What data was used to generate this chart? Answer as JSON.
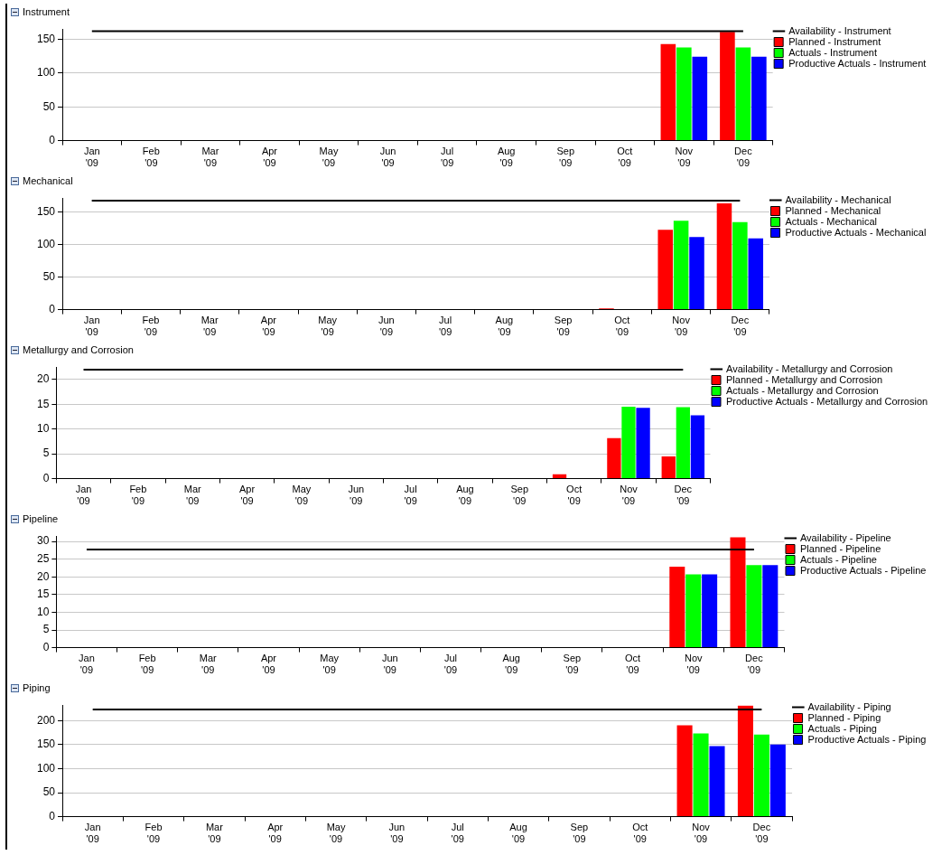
{
  "chart_data": [
    {
      "type": "bar",
      "title": "Instrument",
      "categories": [
        "Jan '09",
        "Feb '09",
        "Mar '09",
        "Apr '09",
        "May '09",
        "Jun '09",
        "Jul '09",
        "Aug '09",
        "Sep '09",
        "Oct '09",
        "Nov '09",
        "Dec '09"
      ],
      "ylim": [
        0,
        165
      ],
      "yticks": [
        0,
        50,
        100,
        150
      ],
      "grid": "y",
      "legend": "right",
      "marker": "none",
      "series": [
        {
          "name": "Availability - Instrument",
          "type": "line",
          "color": "#000000",
          "values": [
            162,
            162,
            162,
            162,
            162,
            162,
            162,
            162,
            162,
            162,
            162,
            162
          ]
        },
        {
          "name": "Planned - Instrument",
          "color": "#ff0000",
          "values": [
            0,
            0,
            0,
            0,
            0,
            0,
            0,
            0,
            0,
            0,
            143,
            161
          ]
        },
        {
          "name": "Actuals - Instrument",
          "color": "#00ff00",
          "values": [
            0,
            0,
            0,
            0,
            0,
            0,
            0,
            0,
            0,
            0,
            138,
            138
          ]
        },
        {
          "name": "Productive Actuals - Instrument",
          "color": "#0000ff",
          "values": [
            0,
            0,
            0,
            0,
            0,
            0,
            0,
            0,
            0,
            0,
            124,
            124
          ]
        }
      ]
    },
    {
      "type": "bar",
      "title": "Mechanical",
      "categories": [
        "Jan '09",
        "Feb '09",
        "Mar '09",
        "Apr '09",
        "May '09",
        "Jun '09",
        "Jul '09",
        "Aug '09",
        "Sep '09",
        "Oct '09",
        "Nov '09",
        "Dec '09"
      ],
      "ylim": [
        0,
        172
      ],
      "yticks": [
        0,
        50,
        100,
        150
      ],
      "grid": "y",
      "legend": "right",
      "marker": "none",
      "series": [
        {
          "name": "Availability - Mechanical",
          "type": "line",
          "color": "#000000",
          "values": [
            168,
            168,
            168,
            168,
            168,
            168,
            168,
            168,
            168,
            168,
            168,
            168
          ]
        },
        {
          "name": "Planned - Mechanical",
          "color": "#ff0000",
          "values": [
            0,
            0,
            0,
            0,
            0,
            0,
            0,
            0,
            0,
            2,
            123,
            164
          ]
        },
        {
          "name": "Actuals - Mechanical",
          "color": "#00ff00",
          "values": [
            0,
            0,
            0,
            0,
            0,
            0,
            0,
            0,
            0,
            0,
            137,
            135
          ]
        },
        {
          "name": "Productive Actuals - Mechanical",
          "color": "#0000ff",
          "values": [
            0,
            0,
            0,
            0,
            0,
            0,
            0,
            0,
            0,
            0,
            112,
            110
          ]
        }
      ]
    },
    {
      "type": "bar",
      "title": "Metallurgy and Corrosion",
      "categories": [
        "Jan '09",
        "Feb '09",
        "Mar '09",
        "Apr '09",
        "May '09",
        "Jun '09",
        "Jul '09",
        "Aug '09",
        "Sep '09",
        "Oct '09",
        "Nov '09",
        "Dec '09"
      ],
      "ylim": [
        0,
        22.5
      ],
      "yticks": [
        0,
        5,
        10,
        15,
        20
      ],
      "grid": "y",
      "legend": "right",
      "marker": "none",
      "series": [
        {
          "name": "Availability - Metallurgy and Corrosion",
          "type": "line",
          "color": "#000000",
          "values": [
            22,
            22,
            22,
            22,
            22,
            22,
            22,
            22,
            22,
            22,
            22,
            22
          ]
        },
        {
          "name": "Planned - Metallurgy and Corrosion",
          "color": "#ff0000",
          "values": [
            0,
            0,
            0,
            0,
            0,
            0,
            0,
            0,
            0,
            0.9,
            8.2,
            4.5
          ]
        },
        {
          "name": "Actuals - Metallurgy and Corrosion",
          "color": "#00ff00",
          "values": [
            0,
            0,
            0,
            0,
            0,
            0,
            0,
            0,
            0,
            0,
            14.5,
            14.4
          ]
        },
        {
          "name": "Productive Actuals - Metallurgy and Corrosion",
          "color": "#0000ff",
          "values": [
            0,
            0,
            0,
            0,
            0,
            0,
            0,
            0,
            0,
            0,
            14.3,
            12.8
          ]
        }
      ]
    },
    {
      "type": "bar",
      "title": "Pipeline",
      "categories": [
        "Jan '09",
        "Feb '09",
        "Mar '09",
        "Apr '09",
        "May '09",
        "Jun '09",
        "Jul '09",
        "Aug '09",
        "Sep '09",
        "Oct '09",
        "Nov '09",
        "Dec '09"
      ],
      "ylim": [
        0,
        31.5
      ],
      "yticks": [
        0,
        5,
        10,
        15,
        20,
        25,
        30
      ],
      "grid": "y",
      "legend": "right",
      "marker": "none",
      "series": [
        {
          "name": "Availability - Pipeline",
          "type": "line",
          "color": "#000000",
          "values": [
            27.7,
            27.7,
            27.7,
            27.7,
            27.7,
            27.7,
            27.7,
            27.7,
            27.7,
            27.7,
            27.7,
            27.7
          ]
        },
        {
          "name": "Planned - Pipeline",
          "color": "#ff0000",
          "values": [
            0,
            0,
            0,
            0,
            0,
            0,
            0,
            0,
            0,
            0,
            22.9,
            31.2
          ]
        },
        {
          "name": "Actuals - Pipeline",
          "color": "#00ff00",
          "values": [
            0,
            0,
            0,
            0,
            0,
            0,
            0,
            0,
            0,
            0,
            20.7,
            23.3
          ]
        },
        {
          "name": "Productive Actuals - Pipeline",
          "color": "#0000ff",
          "values": [
            0,
            0,
            0,
            0,
            0,
            0,
            0,
            0,
            0,
            0,
            20.7,
            23.3
          ]
        }
      ]
    },
    {
      "type": "bar",
      "title": "Piping",
      "categories": [
        "Jan '09",
        "Feb '09",
        "Mar '09",
        "Apr '09",
        "May '09",
        "Jun '09",
        "Jul '09",
        "Aug '09",
        "Sep '09",
        "Oct '09",
        "Nov '09",
        "Dec '09"
      ],
      "ylim": [
        0,
        232
      ],
      "yticks": [
        0,
        50,
        100,
        150,
        200
      ],
      "grid": "y",
      "legend": "right",
      "marker": "none",
      "series": [
        {
          "name": "Availability - Piping",
          "type": "line",
          "color": "#000000",
          "values": [
            223,
            223,
            223,
            223,
            223,
            223,
            223,
            223,
            223,
            223,
            223,
            223
          ]
        },
        {
          "name": "Planned - Piping",
          "color": "#ff0000",
          "values": [
            0,
            0,
            0,
            0,
            0,
            0,
            0,
            0,
            0,
            0,
            190,
            231
          ]
        },
        {
          "name": "Actuals - Piping",
          "color": "#00ff00",
          "values": [
            0,
            0,
            0,
            0,
            0,
            0,
            0,
            0,
            0,
            0,
            173,
            171
          ]
        },
        {
          "name": "Productive Actuals - Piping",
          "color": "#0000ff",
          "values": [
            0,
            0,
            0,
            0,
            0,
            0,
            0,
            0,
            0,
            0,
            147,
            150
          ]
        }
      ]
    }
  ]
}
